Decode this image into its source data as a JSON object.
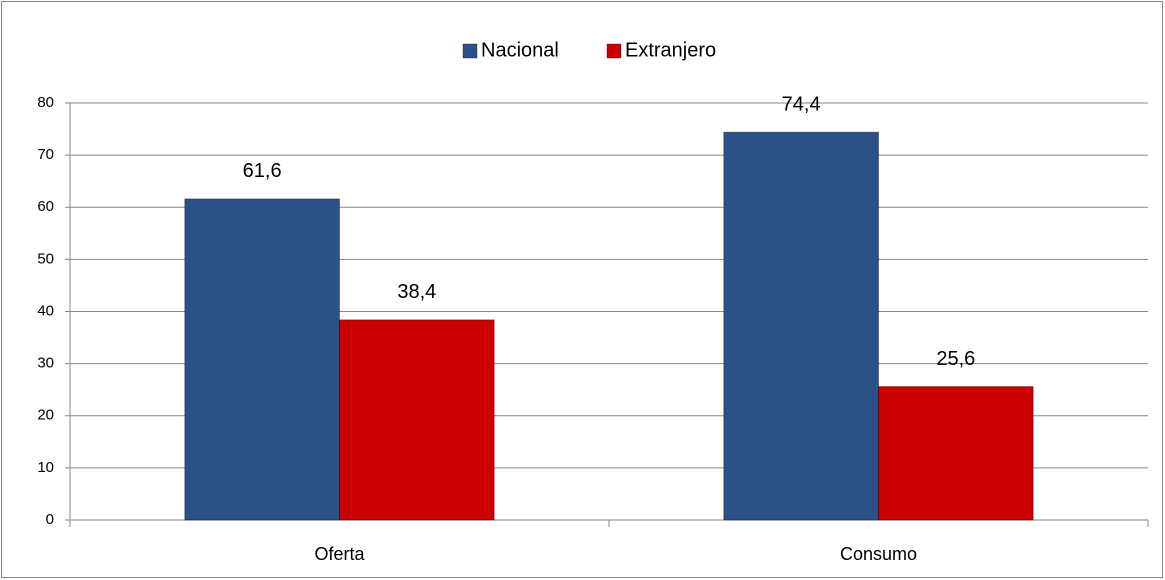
{
  "chart_data": {
    "type": "bar",
    "categories": [
      "Oferta",
      "Consumo"
    ],
    "series": [
      {
        "name": "Nacional",
        "color": "#2a5188",
        "values": [
          61.6,
          74.4
        ],
        "value_labels": [
          "61,6",
          "74,4"
        ]
      },
      {
        "name": "Extranjero",
        "color": "#cc0000",
        "values": [
          38.4,
          25.6
        ],
        "value_labels": [
          "38,4",
          "25,6"
        ]
      }
    ],
    "ylim": [
      0,
      80
    ],
    "yticks": [
      0,
      10,
      20,
      30,
      40,
      50,
      60,
      70,
      80
    ],
    "grid": true,
    "legend": "top"
  }
}
